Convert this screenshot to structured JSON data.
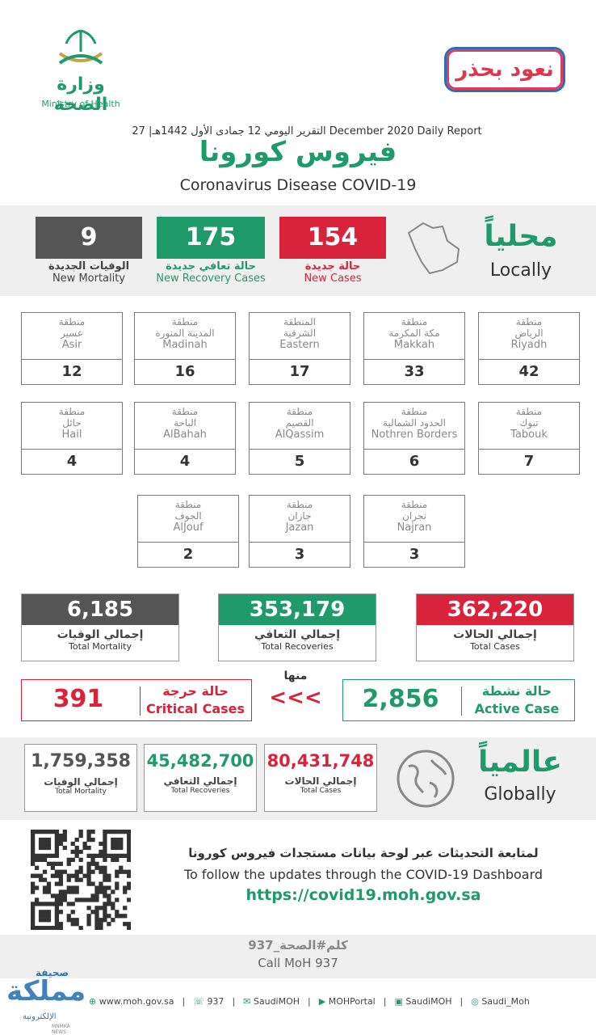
{
  "header": {
    "moh_ar": "وزارة الصحة",
    "moh_en": "Ministry of Health",
    "naood": "نعود بحذر",
    "daily_report": "التقرير اليومي 12 جمادى الأول 1442هـ| 27 December 2020 Daily Report",
    "title_ar": "فيروس كورونا",
    "title_en": "Coronavirus Disease COVID-19"
  },
  "local": {
    "heading_ar": "محلياً",
    "heading_en": "Locally",
    "new_cases": {
      "value": "154",
      "ar": "حالة جديدة",
      "en": "New Cases"
    },
    "new_recovery": {
      "value": "175",
      "ar": "حالة تعافي جديدة",
      "en": "New Recovery Cases"
    },
    "new_mortality": {
      "value": "9",
      "ar": "الوفيات الجديدة",
      "en": "New Mortality"
    }
  },
  "regions": [
    {
      "l1": "منطقة",
      "l2": "الرياض",
      "en": "Riyadh",
      "value": "42"
    },
    {
      "l1": "منطقة",
      "l2": "مكة المكرمة",
      "en": "Makkah",
      "value": "33"
    },
    {
      "l1": "المنطقة",
      "l2": "الشرقية",
      "en": "Eastern",
      "value": "17"
    },
    {
      "l1": "منطقة",
      "l2": "المدينة المنورة",
      "en": "Madinah",
      "value": "16"
    },
    {
      "l1": "منطقة",
      "l2": "عسير",
      "en": "Asir",
      "value": "12"
    },
    {
      "l1": "منطقة",
      "l2": "تبوك",
      "en": "Tabouk",
      "value": "7"
    },
    {
      "l1": "منطقة",
      "l2": "الحدود الشمالية",
      "en": "Nothren Borders",
      "value": "6"
    },
    {
      "l1": "منطقة",
      "l2": "القصيم",
      "en": "AlQassim",
      "value": "5"
    },
    {
      "l1": "منطقة",
      "l2": "الباحة",
      "en": "AlBahah",
      "value": "4"
    },
    {
      "l1": "منطقة",
      "l2": "حائل",
      "en": "Hail",
      "value": "4"
    },
    {
      "l1": "منطقة",
      "l2": "نجران",
      "en": "Najran",
      "value": "3"
    },
    {
      "l1": "منطقة",
      "l2": "جازان",
      "en": "Jazan",
      "value": "3"
    },
    {
      "l1": "منطقة",
      "l2": "الجوف",
      "en": "AlJouf",
      "value": "2"
    }
  ],
  "totals": {
    "cases": {
      "value": "362,220",
      "ar": "إجمالي الحالات",
      "en": "Total Cases"
    },
    "recoveries": {
      "value": "353,179",
      "ar": "إجمالي التعافي",
      "en": "Total Recoveries"
    },
    "mortality": {
      "value": "6,185",
      "ar": "إجمالي الوفيات",
      "en": "Total Mortality"
    }
  },
  "active": {
    "minha": "منها",
    "arrows": "<<<",
    "active_value": "2,856",
    "active_ar": "حالة نشطة",
    "active_en": "Active Case",
    "critical_value": "391",
    "critical_ar": "حالة حرجة",
    "critical_en": "Critical Cases"
  },
  "global": {
    "heading_ar": "عالمياً",
    "heading_en": "Globally",
    "cases": {
      "value": "80,431,748",
      "ar": "إجمالي الحالات",
      "en": "Total Cases"
    },
    "recoveries": {
      "value": "45,482,700",
      "ar": "إجمالي التعافي",
      "en": "Total Recoveries"
    },
    "mortality": {
      "value": "1,759,358",
      "ar": "إجمالي الوفيات",
      "en": "Total Mortality"
    }
  },
  "dashboard": {
    "ar": "لمتابعة التحديثات عبر لوحة بيانات مستجدات فيروس كورونا",
    "en": "To follow the updates through the COVID-19 Dashboard",
    "url": "https://covid19.moh.gov.sa"
  },
  "call": {
    "ar": "كلم#الصحة_937",
    "en": "Call MoH 937"
  },
  "footer": {
    "website": "www.moh.gov.sa",
    "phone": "937",
    "twitter": "SaudiMOH",
    "youtube": "MOHPortal",
    "facebook": "SaudiMOH",
    "instagram": "Saudi_Moh"
  },
  "watermark": {
    "ar": "صحيفة",
    "brand": "مملكة",
    "sub": "الإلكترونية",
    "tag": "MNMKA NEWS"
  },
  "colors": {
    "green": "#1f9a6a",
    "red": "#d8233a",
    "grey": "#555555"
  }
}
